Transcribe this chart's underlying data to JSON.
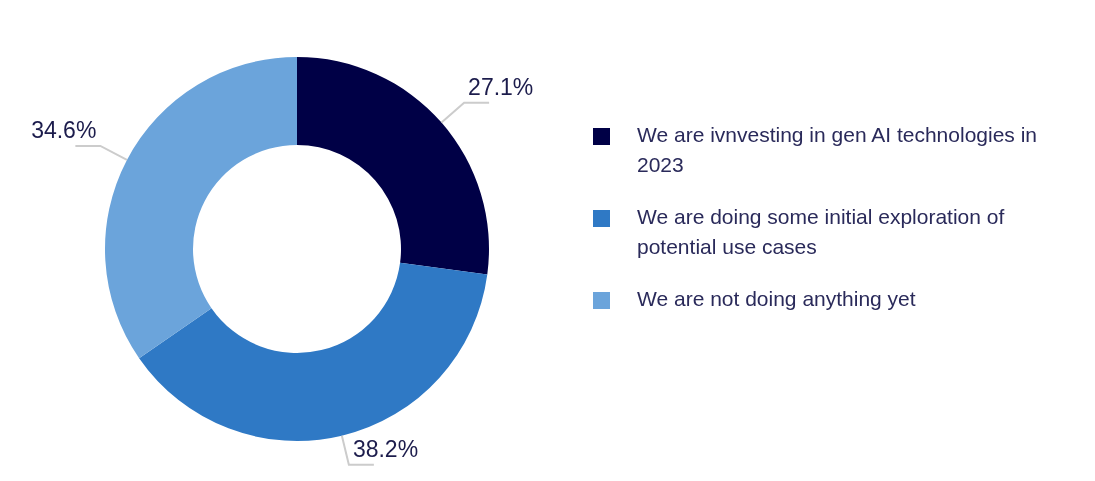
{
  "chart_data": {
    "type": "donut",
    "categories": [
      "We are ivnvesting in gen AI technologies in 2023",
      "We are doing some initial exploration of potential use cases",
      "We are not doing anything yet"
    ],
    "values": [
      27.1,
      38.2,
      34.6
    ],
    "colors": [
      "#000046",
      "#2f79c5",
      "#6ba4db"
    ],
    "value_labels": [
      "27.1%",
      "38.2%",
      "34.6%"
    ],
    "legend": "right"
  }
}
